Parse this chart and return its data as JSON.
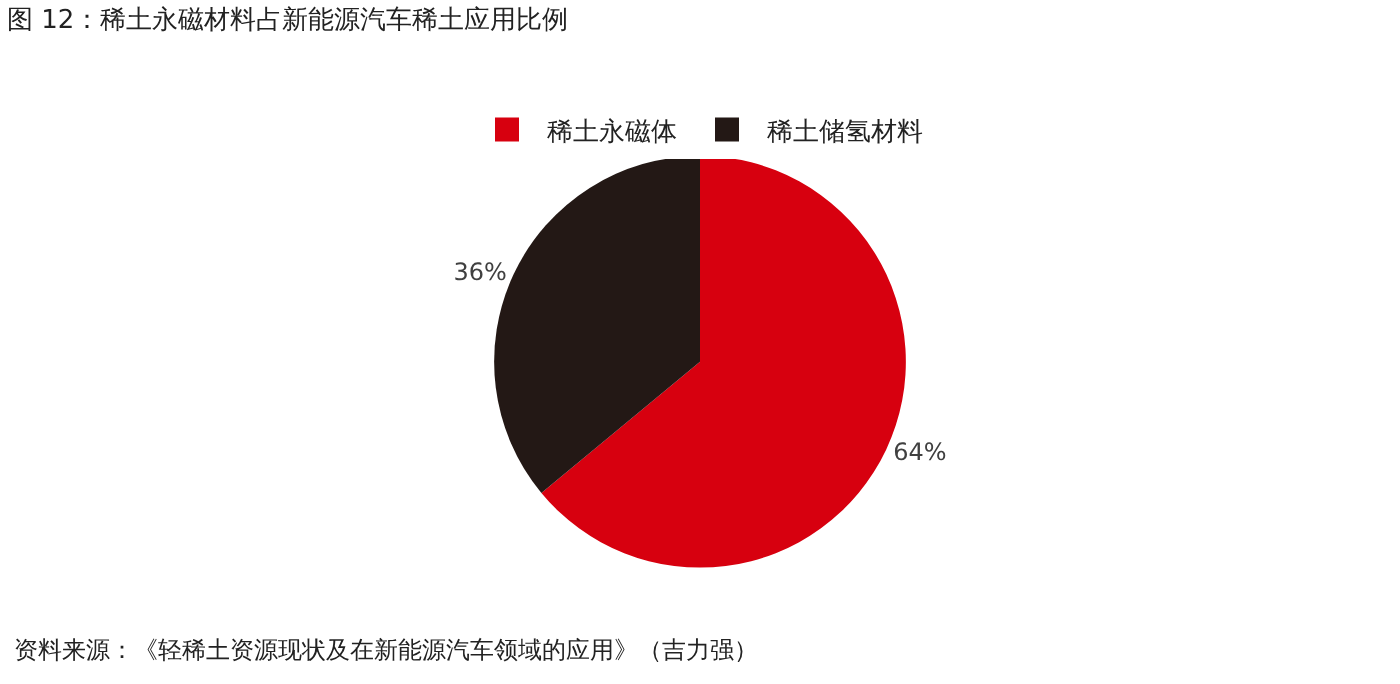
{
  "chart_data": {
    "type": "pie",
    "title": "图 12：稀土永磁材料占新能源汽车稀土应用比例",
    "categories": [
      "稀土永磁体",
      "稀土储氢材料"
    ],
    "values": [
      64,
      36
    ],
    "colors": [
      "#d7000f",
      "#231815"
    ],
    "value_labels": [
      "64%",
      "36%"
    ],
    "legend": "top",
    "annotations": [
      "资料来源：《轻稀土资源现状及在新能源汽车领域的应用》（吉力强）"
    ]
  }
}
